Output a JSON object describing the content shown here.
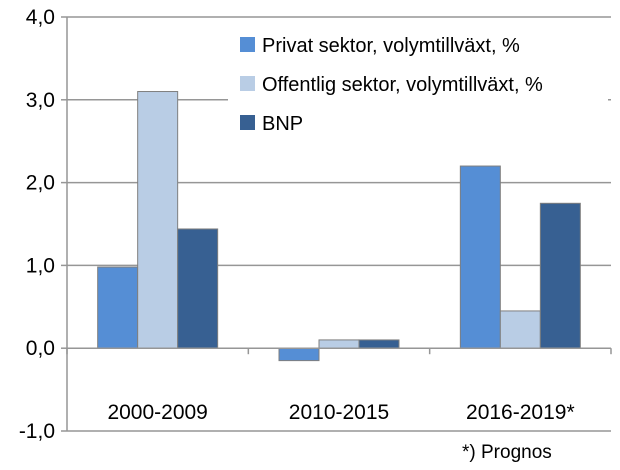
{
  "chart_data": {
    "type": "bar",
    "categories": [
      "2000-2009",
      "2010-2015",
      "2016-2019*"
    ],
    "series": [
      {
        "name": "Privat sektor, volymtillväxt, %",
        "color": "#558ED5",
        "values": [
          0.98,
          -0.15,
          2.2
        ]
      },
      {
        "name": "Offentlig sektor, volymtillväxt, %",
        "color": "#B9CDE5",
        "values": [
          3.1,
          0.1,
          0.45
        ]
      },
      {
        "name": "BNP",
        "color": "#376092",
        "values": [
          1.44,
          0.1,
          1.75
        ]
      }
    ],
    "ylim": [
      -1.0,
      4.0
    ],
    "yticks": [
      -1.0,
      0.0,
      1.0,
      2.0,
      3.0,
      4.0
    ],
    "ytick_labels": [
      "-1,0",
      "0,0",
      "1,0",
      "2,0",
      "3,0",
      "4,0"
    ],
    "grid": true,
    "legend_position": "top-right",
    "footnote": "*) Prognos",
    "title": "",
    "xlabel": "",
    "ylabel": ""
  }
}
